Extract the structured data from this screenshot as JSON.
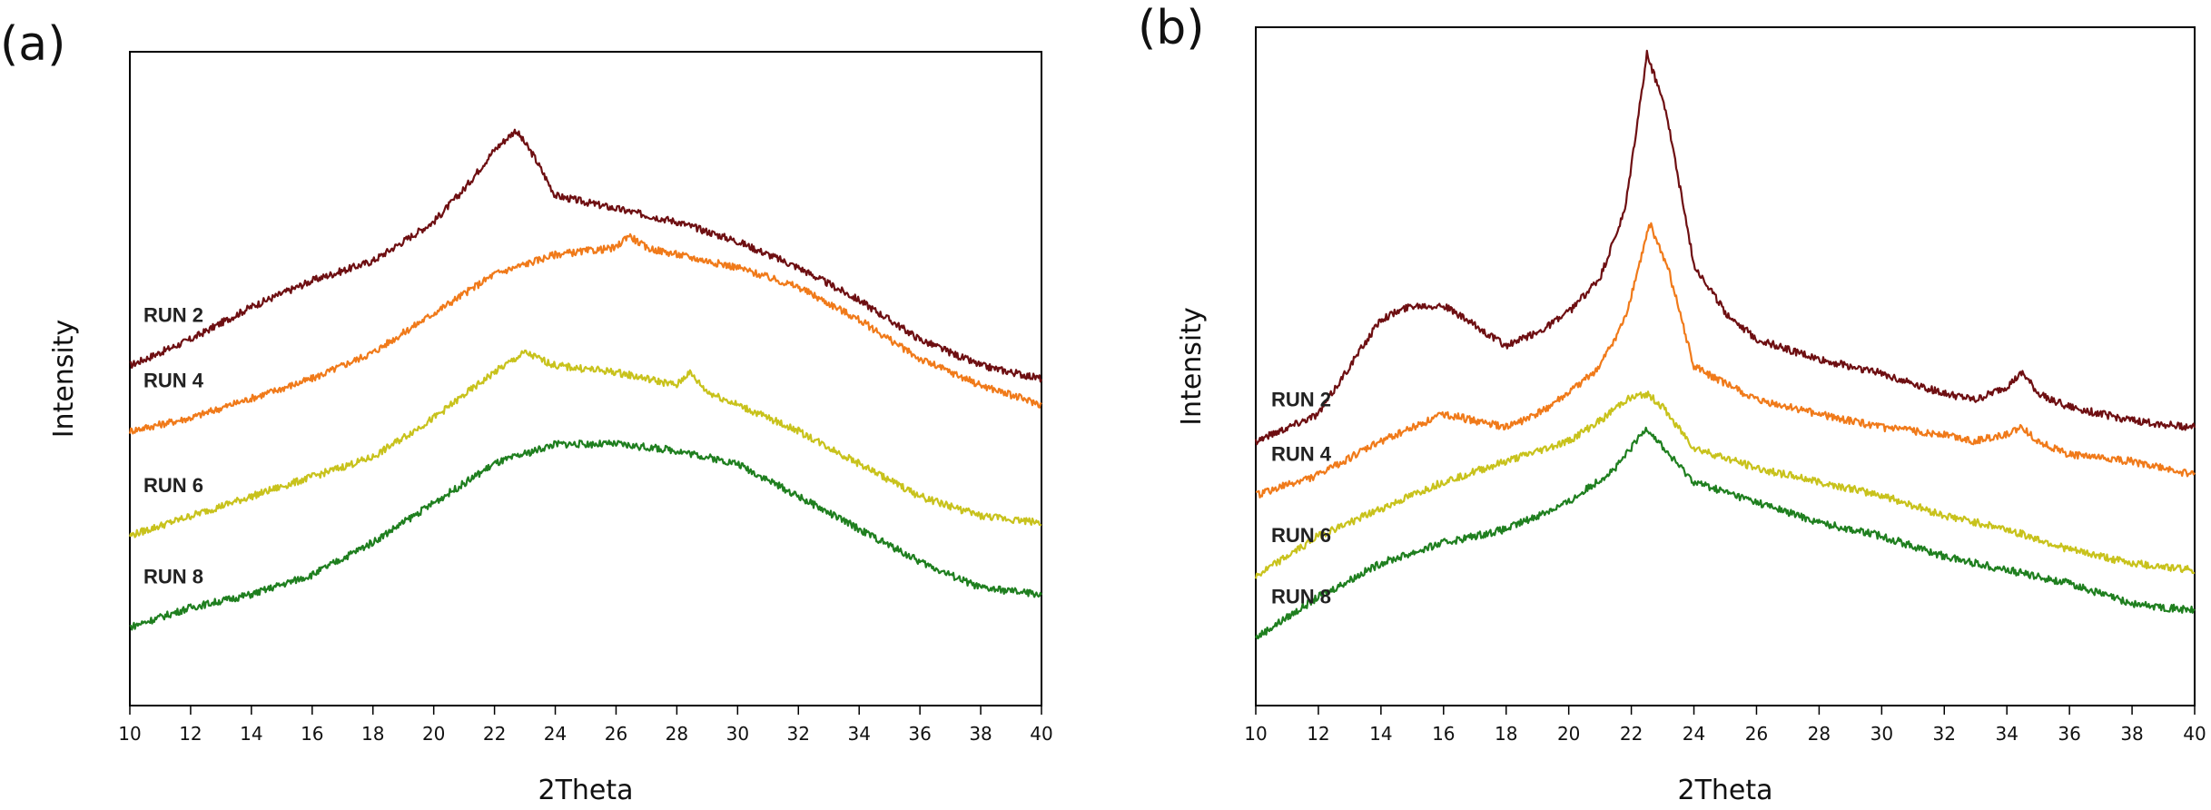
{
  "chart_data": [
    {
      "type": "line",
      "panel_label": "(a)",
      "xlabel": "2Theta",
      "ylabel": "Intensity",
      "xlim": [
        10,
        40
      ],
      "ylim": [
        0,
        100
      ],
      "x_ticks": [
        10,
        12,
        14,
        16,
        18,
        20,
        22,
        24,
        26,
        28,
        30,
        32,
        34,
        36,
        38,
        40
      ],
      "y_tick_labels": false,
      "legend": "inline-left",
      "series": [
        {
          "name": "RUN 2",
          "color": "#6e0f12",
          "points": [
            [
              10,
              52
            ],
            [
              12,
              56
            ],
            [
              14,
              61
            ],
            [
              16,
              65
            ],
            [
              18,
              68
            ],
            [
              19,
              71
            ],
            [
              20,
              74
            ],
            [
              21,
              79
            ],
            [
              22,
              85
            ],
            [
              22.7,
              88
            ],
            [
              23.3,
              84
            ],
            [
              24,
              78
            ],
            [
              26,
              76
            ],
            [
              28,
              74
            ],
            [
              30,
              71
            ],
            [
              32,
              67
            ],
            [
              34,
              62
            ],
            [
              36,
              56
            ],
            [
              38,
              52
            ],
            [
              40,
              50
            ]
          ]
        },
        {
          "name": "RUN 4",
          "color": "#f07a1a",
          "points": [
            [
              10,
              42
            ],
            [
              12,
              44
            ],
            [
              14,
              47
            ],
            [
              16,
              50
            ],
            [
              18,
              54
            ],
            [
              20,
              60
            ],
            [
              22,
              66
            ],
            [
              24,
              69
            ],
            [
              26,
              70
            ],
            [
              26.4,
              72
            ],
            [
              27,
              70
            ],
            [
              28,
              69
            ],
            [
              30,
              67
            ],
            [
              32,
              64
            ],
            [
              34,
              59
            ],
            [
              36,
              53
            ],
            [
              38,
              49
            ],
            [
              40,
              46
            ]
          ]
        },
        {
          "name": "RUN 6",
          "color": "#c8c21c",
          "points": [
            [
              10,
              26
            ],
            [
              12,
              29
            ],
            [
              14,
              32
            ],
            [
              16,
              35
            ],
            [
              18,
              38
            ],
            [
              20,
              44
            ],
            [
              22,
              51
            ],
            [
              23,
              54
            ],
            [
              24,
              52
            ],
            [
              26,
              51
            ],
            [
              28,
              49
            ],
            [
              28.4,
              51
            ],
            [
              29,
              48
            ],
            [
              30,
              46
            ],
            [
              32,
              42
            ],
            [
              34,
              37
            ],
            [
              36,
              32
            ],
            [
              38,
              29
            ],
            [
              40,
              28
            ]
          ]
        },
        {
          "name": "RUN 8",
          "color": "#1f7f1f",
          "points": [
            [
              10,
              12
            ],
            [
              12,
              15
            ],
            [
              14,
              17
            ],
            [
              16,
              20
            ],
            [
              18,
              25
            ],
            [
              20,
              31
            ],
            [
              22,
              37
            ],
            [
              24,
              40
            ],
            [
              26,
              40
            ],
            [
              28,
              39
            ],
            [
              30,
              37
            ],
            [
              32,
              32
            ],
            [
              34,
              27
            ],
            [
              36,
              22
            ],
            [
              38,
              18
            ],
            [
              40,
              17
            ]
          ]
        }
      ]
    },
    {
      "type": "line",
      "panel_label": "(b)",
      "xlabel": "2Theta",
      "ylabel": "Intensity",
      "xlim": [
        10,
        40
      ],
      "ylim": [
        0,
        100
      ],
      "x_ticks": [
        10,
        12,
        14,
        16,
        18,
        20,
        22,
        24,
        26,
        28,
        30,
        32,
        34,
        36,
        38,
        40
      ],
      "y_tick_labels": false,
      "legend": "inline-left",
      "series": [
        {
          "name": "RUN 2",
          "color": "#6e0f12",
          "points": [
            [
              10,
              39
            ],
            [
              12,
              43
            ],
            [
              13,
              50
            ],
            [
              14,
              57
            ],
            [
              15,
              59
            ],
            [
              16,
              59
            ],
            [
              17,
              56
            ],
            [
              18,
              53
            ],
            [
              19,
              55
            ],
            [
              20,
              58
            ],
            [
              21,
              63
            ],
            [
              21.8,
              73
            ],
            [
              22.5,
              96
            ],
            [
              23.1,
              88
            ],
            [
              24,
              65
            ],
            [
              25,
              58
            ],
            [
              26,
              54
            ],
            [
              28,
              51
            ],
            [
              30,
              49
            ],
            [
              32,
              46
            ],
            [
              33,
              45
            ],
            [
              34,
              47
            ],
            [
              34.5,
              49
            ],
            [
              35,
              46
            ],
            [
              36,
              44
            ],
            [
              38,
              42
            ],
            [
              40,
              41
            ]
          ]
        },
        {
          "name": "RUN 4",
          "color": "#f07a1a",
          "points": [
            [
              10,
              31
            ],
            [
              12,
              34
            ],
            [
              14,
              39
            ],
            [
              15,
              41
            ],
            [
              16,
              43
            ],
            [
              17,
              42
            ],
            [
              18,
              41
            ],
            [
              19,
              43
            ],
            [
              20,
              46
            ],
            [
              21,
              50
            ],
            [
              21.8,
              57
            ],
            [
              22.6,
              71
            ],
            [
              23.2,
              64
            ],
            [
              24,
              50
            ],
            [
              26,
              45
            ],
            [
              28,
              43
            ],
            [
              30,
              41
            ],
            [
              32,
              40
            ],
            [
              33,
              39
            ],
            [
              34,
              40
            ],
            [
              34.5,
              41
            ],
            [
              35,
              39
            ],
            [
              36,
              37
            ],
            [
              38,
              36
            ],
            [
              40,
              34
            ]
          ]
        },
        {
          "name": "RUN 6",
          "color": "#c8c21c",
          "points": [
            [
              10,
              19
            ],
            [
              12,
              25
            ],
            [
              14,
              29
            ],
            [
              16,
              33
            ],
            [
              18,
              36
            ],
            [
              20,
              39
            ],
            [
              21,
              42
            ],
            [
              21.8,
              45
            ],
            [
              22.5,
              46
            ],
            [
              23,
              44
            ],
            [
              24,
              38
            ],
            [
              26,
              35
            ],
            [
              28,
              33
            ],
            [
              30,
              31
            ],
            [
              32,
              28
            ],
            [
              34,
              26
            ],
            [
              36,
              23
            ],
            [
              38,
              21
            ],
            [
              40,
              20
            ]
          ]
        },
        {
          "name": "RUN 8",
          "color": "#1f7f1f",
          "points": [
            [
              10,
              10
            ],
            [
              12,
              16
            ],
            [
              14,
              21
            ],
            [
              16,
              24
            ],
            [
              18,
              26
            ],
            [
              20,
              30
            ],
            [
              21.5,
              35
            ],
            [
              22.5,
              41
            ],
            [
              23.2,
              37
            ],
            [
              24,
              33
            ],
            [
              26,
              30
            ],
            [
              28,
              27
            ],
            [
              30,
              25
            ],
            [
              32,
              22
            ],
            [
              34,
              20
            ],
            [
              36,
              18
            ],
            [
              38,
              15
            ],
            [
              40,
              14
            ]
          ]
        }
      ]
    }
  ]
}
